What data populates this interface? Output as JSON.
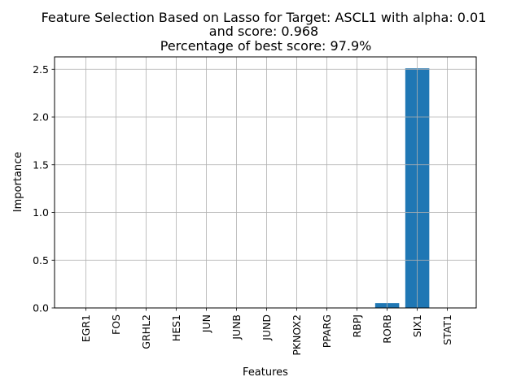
{
  "chart_data": {
    "type": "bar",
    "title_lines": [
      "Feature Selection Based on Lasso for Target: ASCL1 with alpha: 0.01",
      "and score: 0.968",
      " Percentage of best score: 97.9%"
    ],
    "xlabel": "Features",
    "ylabel": "Importance",
    "categories": [
      "EGR1",
      "FOS",
      "GRHL2",
      "HES1",
      "JUN",
      "JUNB",
      "JUND",
      "PKNOX2",
      "PPARG",
      "RBPJ",
      "RORB",
      "SIX1",
      "STAT1"
    ],
    "values": [
      0,
      0,
      0,
      0,
      0,
      0,
      0,
      0,
      0,
      0,
      0.05,
      2.51,
      0
    ],
    "ylim": [
      0,
      2.63
    ],
    "yticks": [
      0.0,
      0.5,
      1.0,
      1.5,
      2.0,
      2.5
    ],
    "ytick_labels": [
      "0.0",
      "0.5",
      "1.0",
      "1.5",
      "2.0",
      "2.5"
    ],
    "grid": true,
    "legend": false,
    "bar_color": "#1f77b4"
  }
}
